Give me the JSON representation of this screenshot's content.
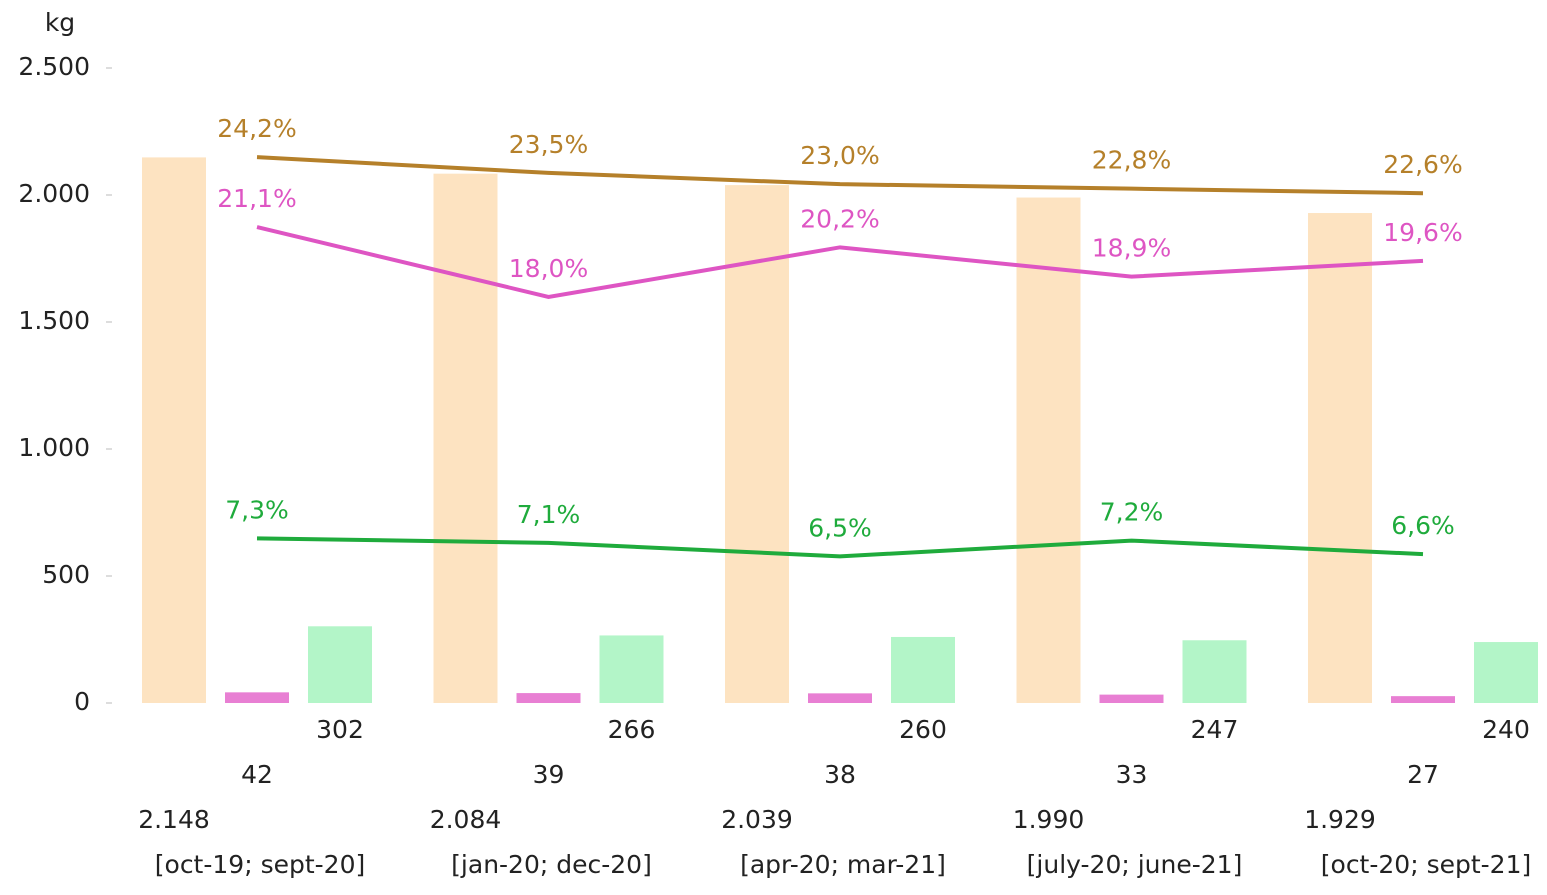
{
  "chart_data": {
    "type": "bar",
    "y_label": "kg",
    "categories": [
      "[oct-19; sept-20]",
      "[jan-20; dec-20]",
      "[apr-20; mar-21]",
      "[july-20; june-21]",
      "[oct-20; sept-21]"
    ],
    "ylim": [
      0,
      2500
    ],
    "yticks": [
      0,
      500,
      {
        "value": 1000,
        "label": "1.000"
      },
      {
        "value": 1500,
        "label": "1.500"
      },
      {
        "value": 2000,
        "label": "2.000"
      },
      {
        "value": 2500,
        "label": "2.500"
      }
    ],
    "y2lim": [
      0,
      28.15
    ],
    "series": [
      {
        "color": "#fde3c1",
        "values": [
          2148,
          2084,
          2039,
          1990,
          1929
        ],
        "value_labels": [
          "2.148",
          "2.084",
          "2.039",
          "1.990",
          "1.929"
        ]
      },
      {
        "color": "#e87fd3",
        "values": [
          42,
          39,
          38,
          33,
          27
        ]
      },
      {
        "color": "#b3f5c8",
        "values": [
          302,
          266,
          260,
          247,
          240
        ]
      },
      {
        "type": "line",
        "axis": "y2",
        "color": "#b5802a",
        "values": [
          24.2,
          23.5,
          23.0,
          22.8,
          22.6
        ],
        "value_labels": [
          "24,2%",
          "23,5%",
          "23,0%",
          "22,8%",
          "22,6%"
        ]
      },
      {
        "type": "line",
        "axis": "y2",
        "color": "#de55c3",
        "values": [
          21.1,
          18.0,
          20.2,
          18.9,
          19.6
        ],
        "value_labels": [
          "21,1%",
          "18,0%",
          "20,2%",
          "18,9%",
          "19,6%"
        ]
      },
      {
        "type": "line",
        "axis": "y2",
        "color": "#1fab3c",
        "values": [
          7.3,
          7.1,
          6.5,
          7.2,
          6.6
        ],
        "value_labels": [
          "7,3%",
          "7,1%",
          "6,5%",
          "7,2%",
          "6,6%"
        ]
      }
    ]
  }
}
